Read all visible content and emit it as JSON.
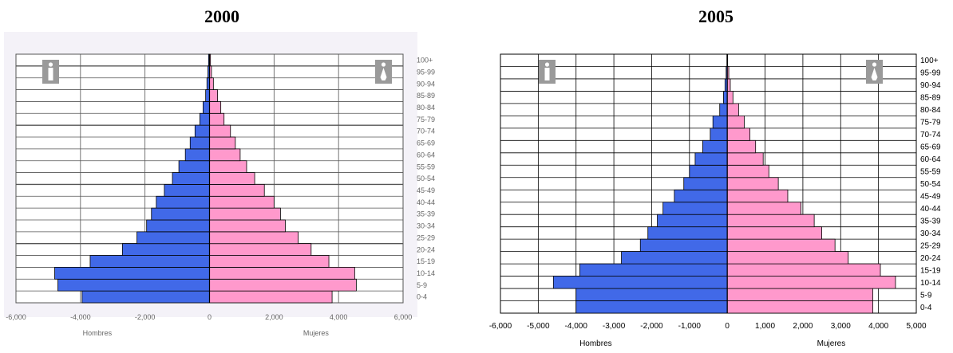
{
  "chart_data": [
    {
      "type": "bar",
      "title": "2000",
      "categories": [
        "0-4",
        "5-9",
        "10-14",
        "15-19",
        "20-24",
        "25-29",
        "30-34",
        "35-39",
        "40-44",
        "45-49",
        "50-54",
        "55-59",
        "60-64",
        "65-69",
        "70-74",
        "75-79",
        "80-84",
        "85-89",
        "90-94",
        "95-99",
        "100+"
      ],
      "series": [
        {
          "name": "Hombres",
          "values": [
            -3950,
            -4700,
            -4800,
            -3700,
            -2700,
            -2250,
            -1950,
            -1800,
            -1650,
            -1400,
            -1150,
            -950,
            -750,
            -600,
            -450,
            -300,
            -200,
            -120,
            -80,
            -50,
            -30
          ]
        },
        {
          "name": "Mujeres",
          "values": [
            3800,
            4550,
            4500,
            3700,
            3150,
            2750,
            2350,
            2200,
            2000,
            1700,
            1400,
            1150,
            950,
            800,
            650,
            450,
            350,
            250,
            120,
            60,
            30
          ]
        }
      ],
      "xlabel": "",
      "xlim": [
        -6000,
        6000
      ],
      "xticks": [
        "-6,000",
        "-4,000",
        "-2,000",
        "0",
        "2,000",
        "4,000",
        "6,000"
      ],
      "legend_labels": [
        "Hombres",
        "Mujeres"
      ],
      "colors": {
        "male": "#4169e8",
        "female": "#ff99cc",
        "background": "#f4f2f8"
      }
    },
    {
      "type": "bar",
      "title": "2005",
      "categories": [
        "0-4",
        "5-9",
        "10-14",
        "15-19",
        "20-24",
        "25-29",
        "30-34",
        "35-39",
        "40-44",
        "45-49",
        "50-54",
        "55-59",
        "60-64",
        "65-69",
        "70-74",
        "75-79",
        "80-84",
        "85-89",
        "90-94",
        "95-99",
        "100+"
      ],
      "series": [
        {
          "name": "Hombres",
          "values": [
            -4000,
            -4000,
            -4600,
            -3900,
            -2800,
            -2300,
            -2100,
            -1850,
            -1700,
            -1400,
            -1150,
            -1000,
            -850,
            -650,
            -450,
            -380,
            -200,
            -100,
            -60,
            -30,
            -10
          ]
        },
        {
          "name": "Mujeres",
          "values": [
            3850,
            3850,
            4450,
            4050,
            3200,
            2850,
            2500,
            2300,
            1950,
            1600,
            1350,
            1100,
            950,
            750,
            600,
            450,
            300,
            150,
            80,
            40,
            10
          ]
        }
      ],
      "xlabel": "",
      "xlim": [
        -6000,
        5000
      ],
      "xticks": [
        "-6,000",
        "-5,000",
        "-4,000",
        "-3,000",
        "-2,000",
        "-1,000",
        "0",
        "1,000",
        "2,000",
        "3,000",
        "4,000",
        "5,000"
      ],
      "legend_labels": [
        "Hombres",
        "Mujeres"
      ],
      "colors": {
        "male": "#4169e8",
        "female": "#ff99cc",
        "background": "#ffffff"
      }
    }
  ]
}
